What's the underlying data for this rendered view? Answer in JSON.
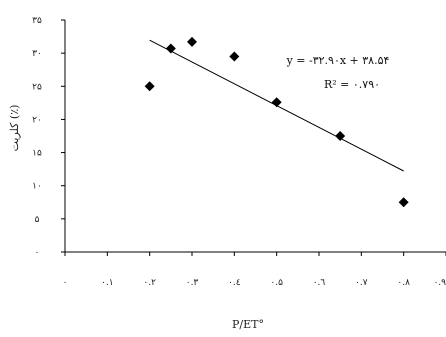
{
  "chart_data": {
    "type": "scatter",
    "xlabel": "P/ET°",
    "ylabel": "کلریت (٪)",
    "xlim": [
      0,
      0.9
    ],
    "ylim": [
      0,
      35
    ],
    "x_ticks": [
      0,
      0.1,
      0.2,
      0.3,
      0.4,
      0.5,
      0.6,
      0.7,
      0.8,
      0.9
    ],
    "y_ticks": [
      0,
      5,
      10,
      15,
      20,
      25,
      30,
      35
    ],
    "x_tick_labels": [
      "۰",
      "۰.۱",
      "۰.۲",
      "۰.۳",
      "۰.٤",
      "۰.۵",
      "۰.٦",
      "۰.۷",
      "۰.۸",
      "۰.۹"
    ],
    "y_tick_labels": [
      "۰",
      "۵",
      "۱۰",
      "۱۵",
      "۲۰",
      "۲۵",
      "۳۰",
      "۳۵"
    ],
    "grid": false,
    "points": [
      {
        "x": 0.2,
        "y": 25
      },
      {
        "x": 0.25,
        "y": 30.7
      },
      {
        "x": 0.3,
        "y": 31.7
      },
      {
        "x": 0.4,
        "y": 29.5
      },
      {
        "x": 0.5,
        "y": 22.6
      },
      {
        "x": 0.65,
        "y": 17.5
      },
      {
        "x": 0.8,
        "y": 7.5
      }
    ],
    "trendline": {
      "slope": -32.9,
      "intercept": 38.54,
      "x_range": [
        0.2,
        0.8
      ],
      "equation": "y = -۳۲.۹۰x + ۳۸.۵۴",
      "r_squared": "R² = ۰.۷۹۰"
    }
  }
}
